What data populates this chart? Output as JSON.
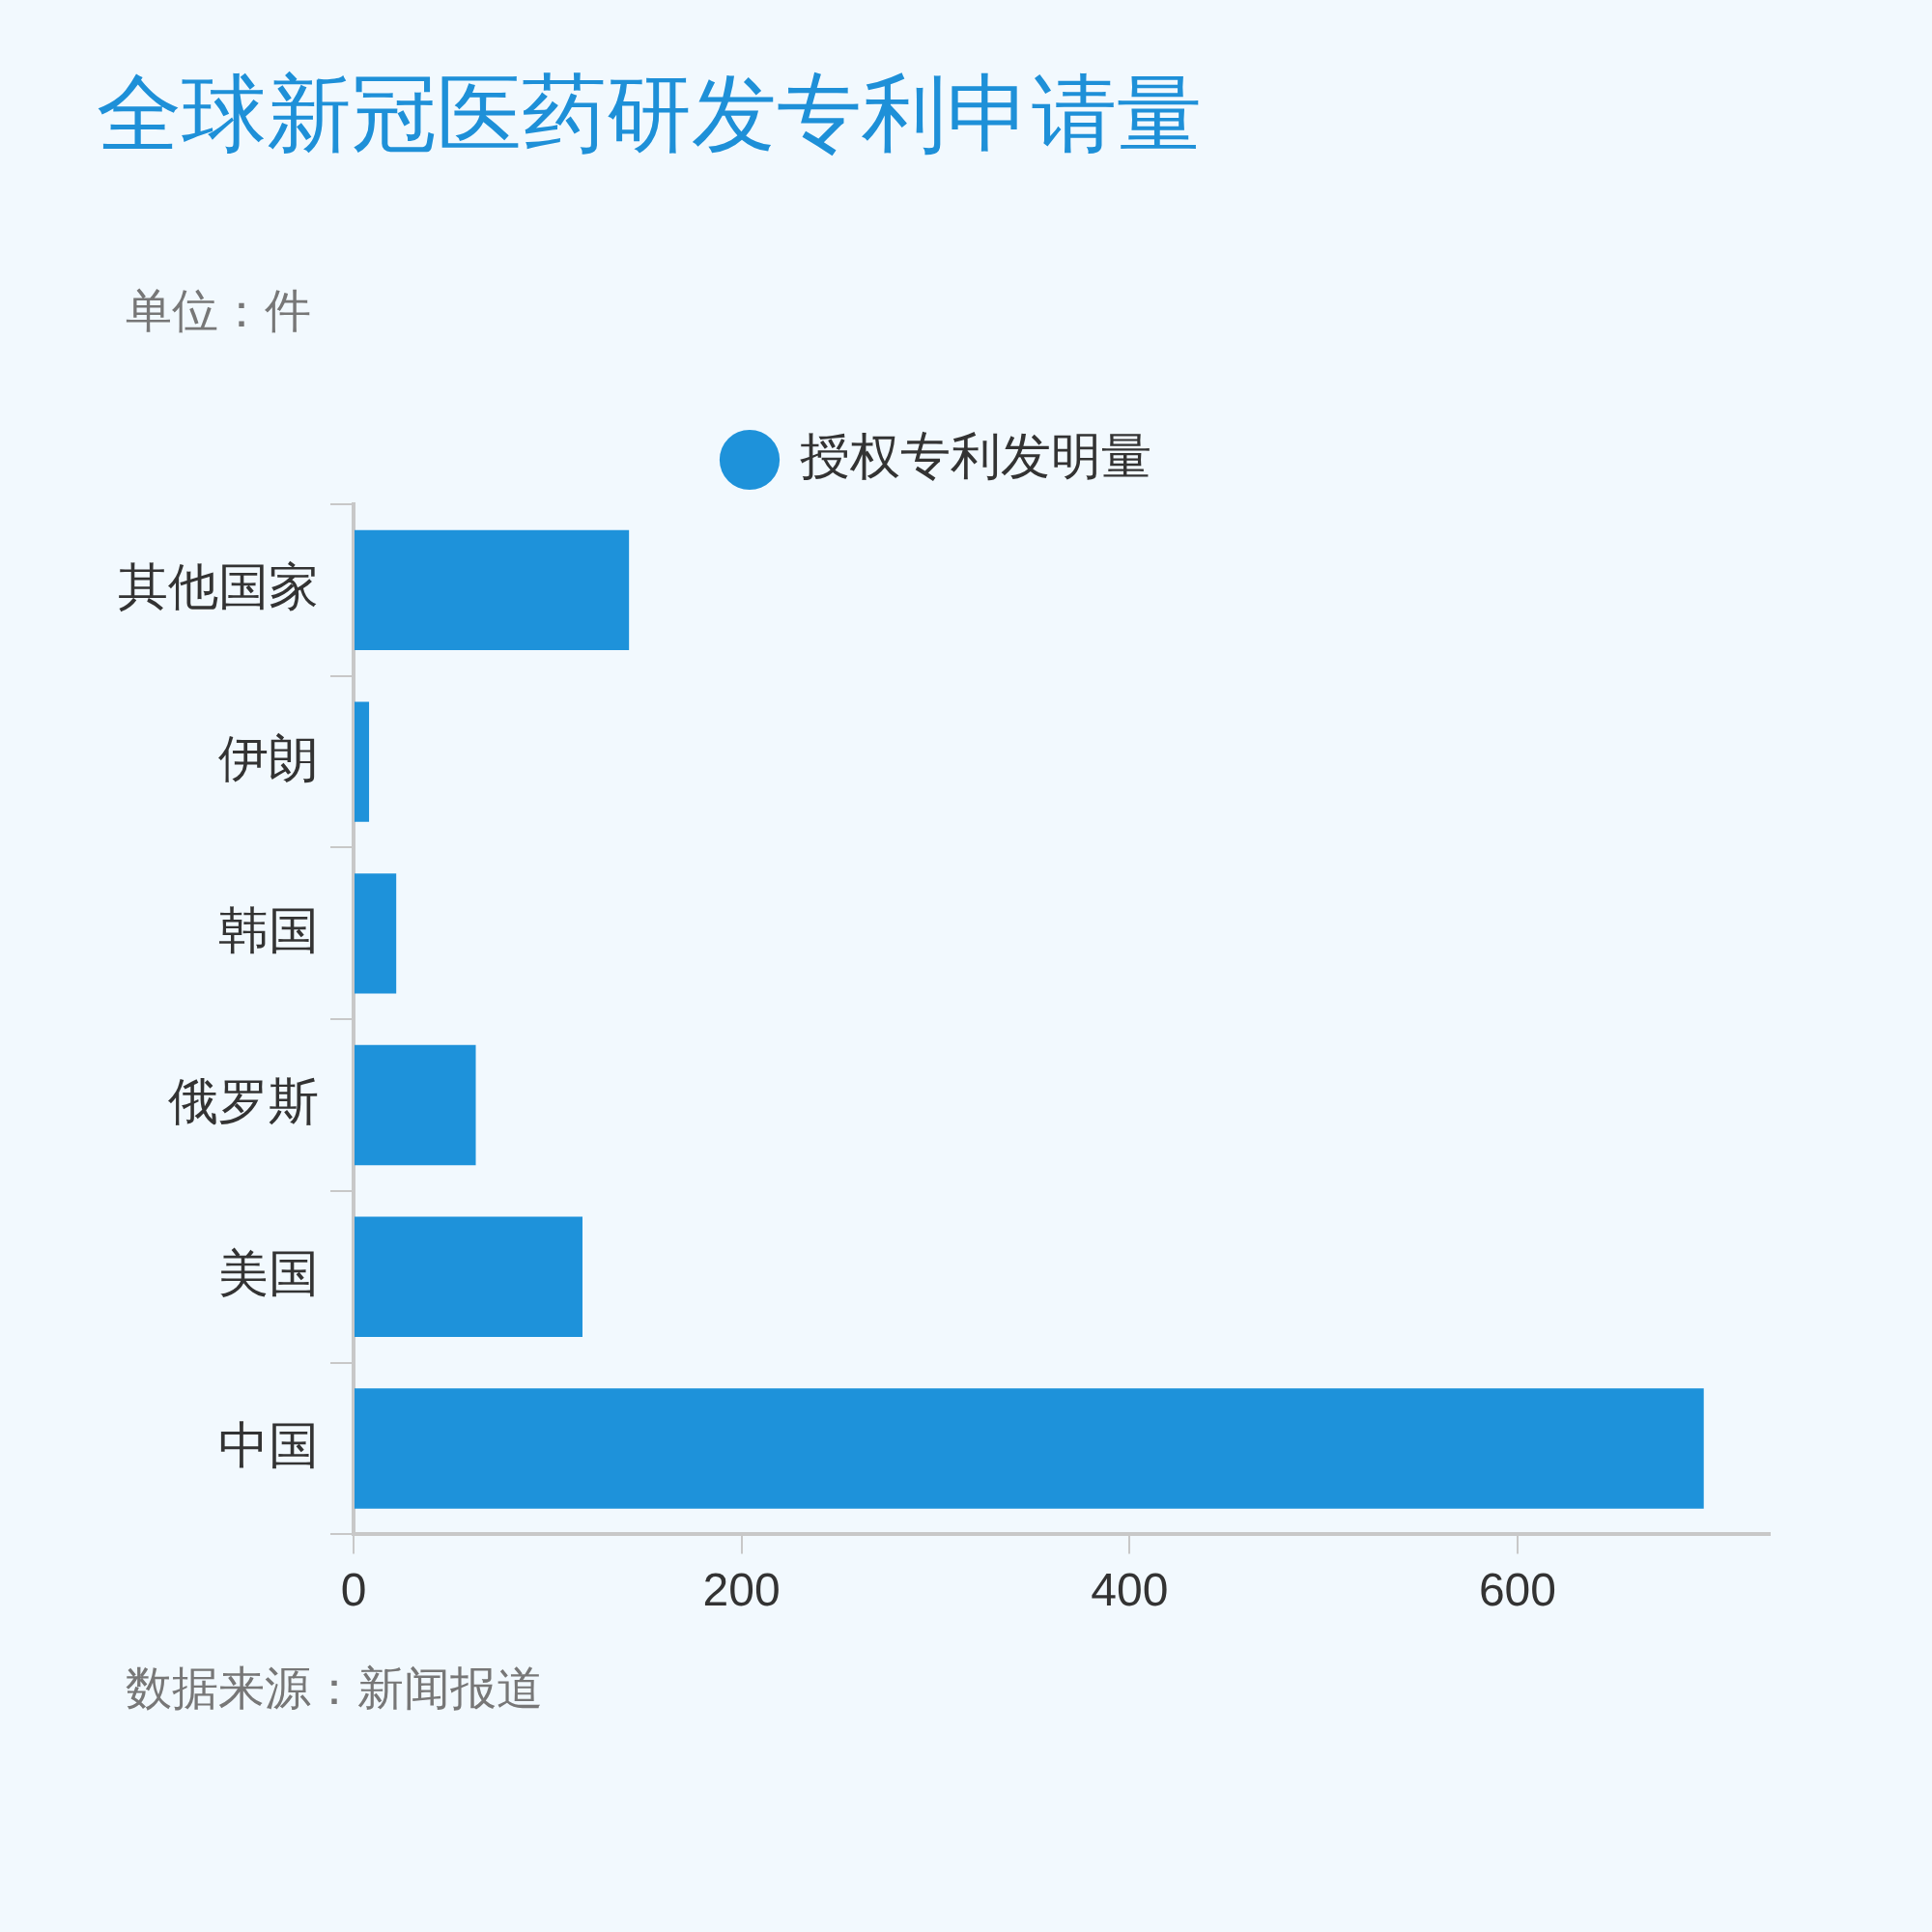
{
  "chart_data": {
    "type": "bar",
    "orientation": "horizontal",
    "title": "全球新冠医药研发专利申请量",
    "annotations": [
      "单位：件",
      "数据来源：新闻报道"
    ],
    "categories": [
      "其他国家",
      "伊朗",
      "韩国",
      "俄罗斯",
      "美国",
      "中国"
    ],
    "series": [
      {
        "name": "授权专利发明量",
        "color": "#1e92da",
        "values": [
          142,
          8,
          22,
          63,
          118,
          696
        ]
      }
    ],
    "xlim": [
      0,
      730
    ],
    "xticks": [
      0,
      200,
      400,
      600
    ],
    "legend": "top",
    "marker": "circle"
  }
}
